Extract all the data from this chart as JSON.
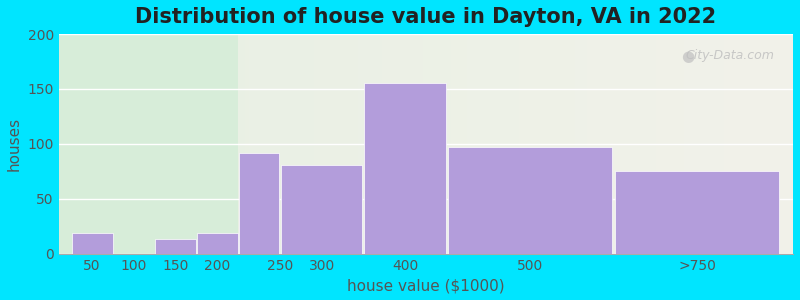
{
  "title": "Distribution of house value in Dayton, VA in 2022",
  "xlabel": "house value ($1000)",
  "ylabel": "houses",
  "xtick_labels": [
    "50",
    "100",
    "150",
    "200",
    "250",
    "300",
    "400",
    "500",
    ">750"
  ],
  "xtick_positions": [
    0,
    1,
    2,
    3,
    4,
    5,
    7,
    9,
    13
  ],
  "bar_lefts": [
    0,
    2,
    3,
    4,
    5,
    7,
    9,
    13
  ],
  "bar_widths": [
    1,
    1,
    1,
    1,
    2,
    2,
    4,
    4
  ],
  "bar_heights": [
    19,
    13,
    19,
    92,
    81,
    155,
    97,
    75
  ],
  "bar_color": "#b39ddb",
  "bg_outer": "#00e5ff",
  "ylim": [
    0,
    200
  ],
  "yticks": [
    0,
    50,
    100,
    150,
    200
  ],
  "title_fontsize": 15,
  "label_fontsize": 11,
  "tick_fontsize": 10,
  "watermark": "City-Data.com",
  "bg_left_color": "#d7edd9",
  "bg_right_color": "#f2f2ea",
  "bg_split_x": 4
}
